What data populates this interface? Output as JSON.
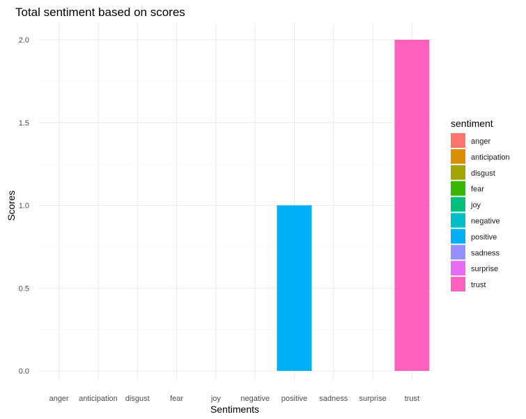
{
  "chart_data": {
    "type": "bar",
    "title": "Total sentiment based on scores",
    "xlabel": "Sentiments",
    "ylabel": "Scores",
    "categories": [
      "anger",
      "anticipation",
      "disgust",
      "fear",
      "joy",
      "negative",
      "positive",
      "sadness",
      "surprise",
      "trust"
    ],
    "values": [
      0,
      0,
      0,
      0,
      0,
      0,
      1,
      0,
      0,
      2
    ],
    "colors": [
      "#F8766D",
      "#D89000",
      "#A3A500",
      "#39B600",
      "#00BF7D",
      "#00BFC4",
      "#00B0F6",
      "#9590FF",
      "#E76BF3",
      "#FF62BC"
    ],
    "ylim": [
      0,
      2.0
    ],
    "yticks": [
      "0.0",
      "0.5",
      "1.0",
      "1.5",
      "2.0"
    ],
    "ytick_values": [
      0,
      0.5,
      1.0,
      1.5,
      2.0
    ],
    "grid": true,
    "legend": {
      "title": "sentiment",
      "placement": "right",
      "entries": [
        "anger",
        "anticipation",
        "disgust",
        "fear",
        "joy",
        "negative",
        "positive",
        "sadness",
        "surprise",
        "trust"
      ]
    }
  }
}
